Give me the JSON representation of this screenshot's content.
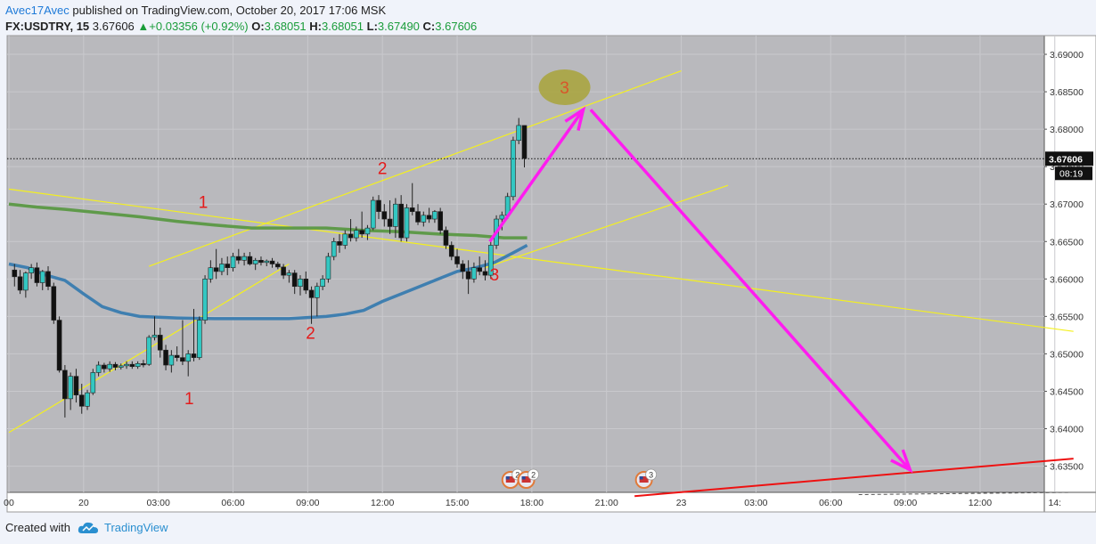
{
  "header": {
    "author": "Avec17Avec",
    "published": "published on TradingView.com, October 20, 2017 17:06 MSK"
  },
  "symbol_bar": {
    "symbol": "FX:USDTRY, 15",
    "last": "3.67606",
    "change": "+0.03356 (+0.92%)",
    "open_label": "O:",
    "open": "3.68051",
    "high_label": "H:",
    "high": "3.68051",
    "low_label": "L:",
    "low": "3.67490",
    "close_label": "C:",
    "close": "3.67606"
  },
  "footer": {
    "created_with": "Created with",
    "brand": "TradingView"
  },
  "colors": {
    "plot_bg": "#b9b9bd",
    "page_bg": "#f0f3fa",
    "bull": "#33c7c2",
    "bear": "#111111",
    "ma_green": "#5f9a4a",
    "ma_blue": "#3f7fb0",
    "yellow_line": "#f4f01e",
    "magenta": "#ff1cf0",
    "red": "#ee1111"
  },
  "chart_data": {
    "type": "candlestick",
    "symbol": "FX:USDTRY",
    "interval": "15",
    "last_price": 3.67606,
    "countdown": "08:19",
    "ylim": [
      3.6315,
      3.6925
    ],
    "y_ticks": [
      3.635,
      3.64,
      3.645,
      3.65,
      3.655,
      3.66,
      3.665,
      3.67,
      3.675,
      3.68,
      3.685,
      3.69
    ],
    "y_tick_labels": [
      "3.63500",
      "3.64000",
      "3.64500",
      "3.65000",
      "3.65500",
      "3.66000",
      "3.66500",
      "3.67000",
      "3.67500",
      "3.68000",
      "3.68500",
      "3.69000"
    ],
    "x_ticks": [
      0,
      8,
      16,
      24,
      32,
      40,
      48,
      56,
      64,
      72,
      80,
      88,
      96,
      104,
      112
    ],
    "x_tick_labels": [
      "00",
      "20",
      "03:00",
      "06:00",
      "09:00",
      "12:00",
      "15:00",
      "18:00",
      "21:00",
      "23",
      "03:00",
      "06:00",
      "09:00",
      "12:00",
      "14:"
    ],
    "candles": [
      {
        "x": 0.6,
        "o": 3.6612,
        "h": 3.662,
        "l": 3.659,
        "c": 3.6603
      },
      {
        "x": 1.2,
        "o": 3.6603,
        "h": 3.6612,
        "l": 3.658,
        "c": 3.6585
      },
      {
        "x": 1.8,
        "o": 3.6585,
        "h": 3.661,
        "l": 3.6575,
        "c": 3.6608
      },
      {
        "x": 2.4,
        "o": 3.6608,
        "h": 3.662,
        "l": 3.66,
        "c": 3.6615
      },
      {
        "x": 3.0,
        "o": 3.6615,
        "h": 3.6622,
        "l": 3.659,
        "c": 3.6595
      },
      {
        "x": 3.6,
        "o": 3.6595,
        "h": 3.6612,
        "l": 3.6585,
        "c": 3.661
      },
      {
        "x": 4.2,
        "o": 3.661,
        "h": 3.6617,
        "l": 3.6585,
        "c": 3.659
      },
      {
        "x": 4.8,
        "o": 3.659,
        "h": 3.6595,
        "l": 3.654,
        "c": 3.6545
      },
      {
        "x": 5.4,
        "o": 3.6545,
        "h": 3.655,
        "l": 3.6475,
        "c": 3.6478
      },
      {
        "x": 6.0,
        "o": 3.6478,
        "h": 3.6485,
        "l": 3.6415,
        "c": 3.644
      },
      {
        "x": 6.6,
        "o": 3.644,
        "h": 3.6475,
        "l": 3.6425,
        "c": 3.647
      },
      {
        "x": 7.2,
        "o": 3.647,
        "h": 3.648,
        "l": 3.6435,
        "c": 3.6445
      },
      {
        "x": 7.8,
        "o": 3.6445,
        "h": 3.646,
        "l": 3.642,
        "c": 3.643
      },
      {
        "x": 8.4,
        "o": 3.643,
        "h": 3.6452,
        "l": 3.6425,
        "c": 3.6448
      },
      {
        "x": 9.0,
        "o": 3.6448,
        "h": 3.648,
        "l": 3.6445,
        "c": 3.6475
      },
      {
        "x": 9.6,
        "o": 3.6475,
        "h": 3.649,
        "l": 3.647,
        "c": 3.6485
      },
      {
        "x": 10.2,
        "o": 3.6485,
        "h": 3.6488,
        "l": 3.6475,
        "c": 3.648
      },
      {
        "x": 10.8,
        "o": 3.648,
        "h": 3.649,
        "l": 3.6476,
        "c": 3.6486
      },
      {
        "x": 11.4,
        "o": 3.6486,
        "h": 3.6489,
        "l": 3.6478,
        "c": 3.6482
      },
      {
        "x": 12.0,
        "o": 3.6482,
        "h": 3.6487,
        "l": 3.6479,
        "c": 3.6484
      },
      {
        "x": 12.6,
        "o": 3.6484,
        "h": 3.649,
        "l": 3.648,
        "c": 3.6486
      },
      {
        "x": 13.2,
        "o": 3.6486,
        "h": 3.649,
        "l": 3.648,
        "c": 3.6483
      },
      {
        "x": 13.8,
        "o": 3.6483,
        "h": 3.649,
        "l": 3.648,
        "c": 3.6487
      },
      {
        "x": 14.4,
        "o": 3.6487,
        "h": 3.6492,
        "l": 3.6482,
        "c": 3.6486
      },
      {
        "x": 15.0,
        "o": 3.6486,
        "h": 3.6525,
        "l": 3.6484,
        "c": 3.6522
      },
      {
        "x": 15.6,
        "o": 3.6522,
        "h": 3.655,
        "l": 3.6518,
        "c": 3.6525
      },
      {
        "x": 16.2,
        "o": 3.6525,
        "h": 3.6535,
        "l": 3.6495,
        "c": 3.6505
      },
      {
        "x": 16.8,
        "o": 3.6505,
        "h": 3.6512,
        "l": 3.6478,
        "c": 3.6485
      },
      {
        "x": 17.4,
        "o": 3.6485,
        "h": 3.6505,
        "l": 3.6475,
        "c": 3.6498
      },
      {
        "x": 18.0,
        "o": 3.6498,
        "h": 3.651,
        "l": 3.649,
        "c": 3.6495
      },
      {
        "x": 18.6,
        "o": 3.6495,
        "h": 3.6545,
        "l": 3.6485,
        "c": 3.649
      },
      {
        "x": 19.2,
        "o": 3.649,
        "h": 3.6505,
        "l": 3.647,
        "c": 3.65
      },
      {
        "x": 19.8,
        "o": 3.65,
        "h": 3.656,
        "l": 3.649,
        "c": 3.6495
      },
      {
        "x": 20.4,
        "o": 3.6495,
        "h": 3.655,
        "l": 3.6492,
        "c": 3.6545
      },
      {
        "x": 21.0,
        "o": 3.6545,
        "h": 3.6605,
        "l": 3.654,
        "c": 3.66
      },
      {
        "x": 21.6,
        "o": 3.66,
        "h": 3.6625,
        "l": 3.6595,
        "c": 3.6615
      },
      {
        "x": 22.2,
        "o": 3.6615,
        "h": 3.664,
        "l": 3.66,
        "c": 3.661
      },
      {
        "x": 22.8,
        "o": 3.661,
        "h": 3.6628,
        "l": 3.6605,
        "c": 3.662
      },
      {
        "x": 23.4,
        "o": 3.662,
        "h": 3.663,
        "l": 3.6605,
        "c": 3.6615
      },
      {
        "x": 24.0,
        "o": 3.6615,
        "h": 3.6635,
        "l": 3.661,
        "c": 3.663
      },
      {
        "x": 24.6,
        "o": 3.663,
        "h": 3.664,
        "l": 3.662,
        "c": 3.6625
      },
      {
        "x": 25.2,
        "o": 3.6625,
        "h": 3.6635,
        "l": 3.6618,
        "c": 3.663
      },
      {
        "x": 25.8,
        "o": 3.663,
        "h": 3.6636,
        "l": 3.6618,
        "c": 3.662
      },
      {
        "x": 26.4,
        "o": 3.662,
        "h": 3.6628,
        "l": 3.6612,
        "c": 3.6625
      },
      {
        "x": 27.0,
        "o": 3.6625,
        "h": 3.663,
        "l": 3.6618,
        "c": 3.6622
      },
      {
        "x": 27.6,
        "o": 3.6622,
        "h": 3.6626,
        "l": 3.6617,
        "c": 3.6624
      },
      {
        "x": 28.2,
        "o": 3.6624,
        "h": 3.6628,
        "l": 3.6615,
        "c": 3.662
      },
      {
        "x": 28.8,
        "o": 3.662,
        "h": 3.6623,
        "l": 3.6613,
        "c": 3.6616
      },
      {
        "x": 29.4,
        "o": 3.6616,
        "h": 3.662,
        "l": 3.66,
        "c": 3.6605
      },
      {
        "x": 30.0,
        "o": 3.6605,
        "h": 3.6612,
        "l": 3.6595,
        "c": 3.6608
      },
      {
        "x": 30.6,
        "o": 3.6608,
        "h": 3.6612,
        "l": 3.658,
        "c": 3.659
      },
      {
        "x": 31.2,
        "o": 3.659,
        "h": 3.6605,
        "l": 3.6578,
        "c": 3.66
      },
      {
        "x": 31.8,
        "o": 3.66,
        "h": 3.661,
        "l": 3.658,
        "c": 3.6585
      },
      {
        "x": 32.4,
        "o": 3.6585,
        "h": 3.659,
        "l": 3.654,
        "c": 3.6575
      },
      {
        "x": 33.0,
        "o": 3.6575,
        "h": 3.6595,
        "l": 3.655,
        "c": 3.659
      },
      {
        "x": 33.6,
        "o": 3.659,
        "h": 3.6605,
        "l": 3.6585,
        "c": 3.66
      },
      {
        "x": 34.2,
        "o": 3.66,
        "h": 3.6635,
        "l": 3.6595,
        "c": 3.663
      },
      {
        "x": 34.8,
        "o": 3.663,
        "h": 3.6655,
        "l": 3.6625,
        "c": 3.665
      },
      {
        "x": 35.4,
        "o": 3.665,
        "h": 3.666,
        "l": 3.6635,
        "c": 3.6645
      },
      {
        "x": 36.0,
        "o": 3.6645,
        "h": 3.6665,
        "l": 3.664,
        "c": 3.666
      },
      {
        "x": 36.6,
        "o": 3.666,
        "h": 3.668,
        "l": 3.665,
        "c": 3.6655
      },
      {
        "x": 37.2,
        "o": 3.6655,
        "h": 3.667,
        "l": 3.665,
        "c": 3.6665
      },
      {
        "x": 37.8,
        "o": 3.6665,
        "h": 3.669,
        "l": 3.6655,
        "c": 3.666
      },
      {
        "x": 38.4,
        "o": 3.666,
        "h": 3.6672,
        "l": 3.6652,
        "c": 3.6668
      },
      {
        "x": 39.0,
        "o": 3.6668,
        "h": 3.671,
        "l": 3.6665,
        "c": 3.6705
      },
      {
        "x": 39.6,
        "o": 3.6705,
        "h": 3.6712,
        "l": 3.668,
        "c": 3.669
      },
      {
        "x": 40.2,
        "o": 3.669,
        "h": 3.67,
        "l": 3.667,
        "c": 3.668
      },
      {
        "x": 40.8,
        "o": 3.668,
        "h": 3.6705,
        "l": 3.666,
        "c": 3.667
      },
      {
        "x": 41.4,
        "o": 3.667,
        "h": 3.6708,
        "l": 3.6655,
        "c": 3.67
      },
      {
        "x": 42.0,
        "o": 3.67,
        "h": 3.6712,
        "l": 3.665,
        "c": 3.6655
      },
      {
        "x": 42.6,
        "o": 3.6655,
        "h": 3.67,
        "l": 3.665,
        "c": 3.6695
      },
      {
        "x": 43.2,
        "o": 3.6695,
        "h": 3.6728,
        "l": 3.6685,
        "c": 3.669
      },
      {
        "x": 43.8,
        "o": 3.669,
        "h": 3.67,
        "l": 3.6672,
        "c": 3.6676
      },
      {
        "x": 44.4,
        "o": 3.6676,
        "h": 3.669,
        "l": 3.667,
        "c": 3.6685
      },
      {
        "x": 45.0,
        "o": 3.6685,
        "h": 3.6695,
        "l": 3.6675,
        "c": 3.668
      },
      {
        "x": 45.6,
        "o": 3.668,
        "h": 3.6692,
        "l": 3.6675,
        "c": 3.669
      },
      {
        "x": 46.2,
        "o": 3.669,
        "h": 3.6695,
        "l": 3.666,
        "c": 3.6665
      },
      {
        "x": 46.8,
        "o": 3.6665,
        "h": 3.667,
        "l": 3.664,
        "c": 3.6645
      },
      {
        "x": 47.4,
        "o": 3.6645,
        "h": 3.665,
        "l": 3.6625,
        "c": 3.663
      },
      {
        "x": 48.0,
        "o": 3.663,
        "h": 3.664,
        "l": 3.6615,
        "c": 3.662
      },
      {
        "x": 48.6,
        "o": 3.662,
        "h": 3.6625,
        "l": 3.66,
        "c": 3.661
      },
      {
        "x": 49.2,
        "o": 3.661,
        "h": 3.6625,
        "l": 3.658,
        "c": 3.66
      },
      {
        "x": 49.8,
        "o": 3.66,
        "h": 3.6622,
        "l": 3.6595,
        "c": 3.6615
      },
      {
        "x": 50.4,
        "o": 3.6615,
        "h": 3.663,
        "l": 3.6605,
        "c": 3.661
      },
      {
        "x": 51.0,
        "o": 3.661,
        "h": 3.6625,
        "l": 3.6598,
        "c": 3.6605
      },
      {
        "x": 51.6,
        "o": 3.6605,
        "h": 3.665,
        "l": 3.66,
        "c": 3.6645
      },
      {
        "x": 52.2,
        "o": 3.6645,
        "h": 3.6685,
        "l": 3.664,
        "c": 3.668
      },
      {
        "x": 52.8,
        "o": 3.668,
        "h": 3.669,
        "l": 3.6665,
        "c": 3.6685
      },
      {
        "x": 53.4,
        "o": 3.6685,
        "h": 3.6715,
        "l": 3.668,
        "c": 3.671
      },
      {
        "x": 54.0,
        "o": 3.671,
        "h": 3.679,
        "l": 3.6705,
        "c": 3.6785
      },
      {
        "x": 54.6,
        "o": 3.6785,
        "h": 3.6815,
        "l": 3.678,
        "c": 3.6805
      },
      {
        "x": 55.2,
        "o": 3.6805,
        "h": 3.6805,
        "l": 3.6749,
        "c": 3.6761
      }
    ],
    "ma_green": [
      [
        0,
        3.67
      ],
      [
        3,
        3.6696
      ],
      [
        6,
        3.6693
      ],
      [
        10,
        3.6688
      ],
      [
        14,
        3.6683
      ],
      [
        18,
        3.6677
      ],
      [
        22,
        3.6672
      ],
      [
        26,
        3.6668
      ],
      [
        30,
        3.6668
      ],
      [
        34,
        3.6668
      ],
      [
        38,
        3.6665
      ],
      [
        42,
        3.6663
      ],
      [
        46,
        3.666
      ],
      [
        50,
        3.6658
      ],
      [
        53,
        3.6655
      ],
      [
        55.5,
        3.6655
      ]
    ],
    "ma_blue": [
      [
        0,
        3.662
      ],
      [
        2,
        3.6615
      ],
      [
        4,
        3.6605
      ],
      [
        6,
        3.6598
      ],
      [
        8,
        3.658
      ],
      [
        10,
        3.6563
      ],
      [
        12,
        3.6555
      ],
      [
        14,
        3.655
      ],
      [
        18,
        3.6548
      ],
      [
        22,
        3.6547
      ],
      [
        26,
        3.6547
      ],
      [
        30,
        3.6547
      ],
      [
        34,
        3.655
      ],
      [
        36,
        3.6553
      ],
      [
        38,
        3.6558
      ],
      [
        40,
        3.657
      ],
      [
        42,
        3.658
      ],
      [
        44,
        3.659
      ],
      [
        46,
        3.66
      ],
      [
        48,
        3.661
      ],
      [
        50,
        3.6615
      ],
      [
        52,
        3.6622
      ],
      [
        54,
        3.6635
      ],
      [
        55.5,
        3.6645
      ]
    ],
    "yellow_lines": [
      [
        [
          0,
          3.6395
        ],
        [
          30,
          3.662
        ]
      ],
      [
        [
          15,
          3.6617
        ],
        [
          72,
          3.6878
        ]
      ],
      [
        [
          0,
          3.672
        ],
        [
          114,
          3.653
        ]
      ],
      [
        [
          51,
          3.6615
        ],
        [
          77,
          3.6725
        ]
      ]
    ],
    "red_line": [
      [
        67,
        3.631
      ],
      [
        114,
        3.636
      ]
    ],
    "dashed_line": [
      [
        91,
        3.6312
      ],
      [
        114,
        3.6315
      ]
    ],
    "magenta_arrows": [
      [
        [
          51.5,
          3.665
        ],
        [
          61.5,
          3.6826
        ]
      ],
      [
        [
          62.3,
          3.6826
        ],
        [
          96.5,
          3.6345
        ]
      ]
    ],
    "target_ellipse": {
      "x": 59.5,
      "y": 3.6856,
      "label": "3"
    },
    "wave_labels": [
      {
        "text": "1",
        "x": 20.8,
        "y": 3.6695
      },
      {
        "text": "2",
        "x": 40.0,
        "y": 3.674
      },
      {
        "text": "1",
        "x": 19.3,
        "y": 3.6433
      },
      {
        "text": "2",
        "x": 32.3,
        "y": 3.652
      },
      {
        "text": "3",
        "x": 52.0,
        "y": 3.6598
      }
    ],
    "event_markers": [
      {
        "x": 53.7,
        "label": "2"
      },
      {
        "x": 55.4,
        "label": "2"
      },
      {
        "x": 68.0,
        "label": "3"
      }
    ]
  }
}
